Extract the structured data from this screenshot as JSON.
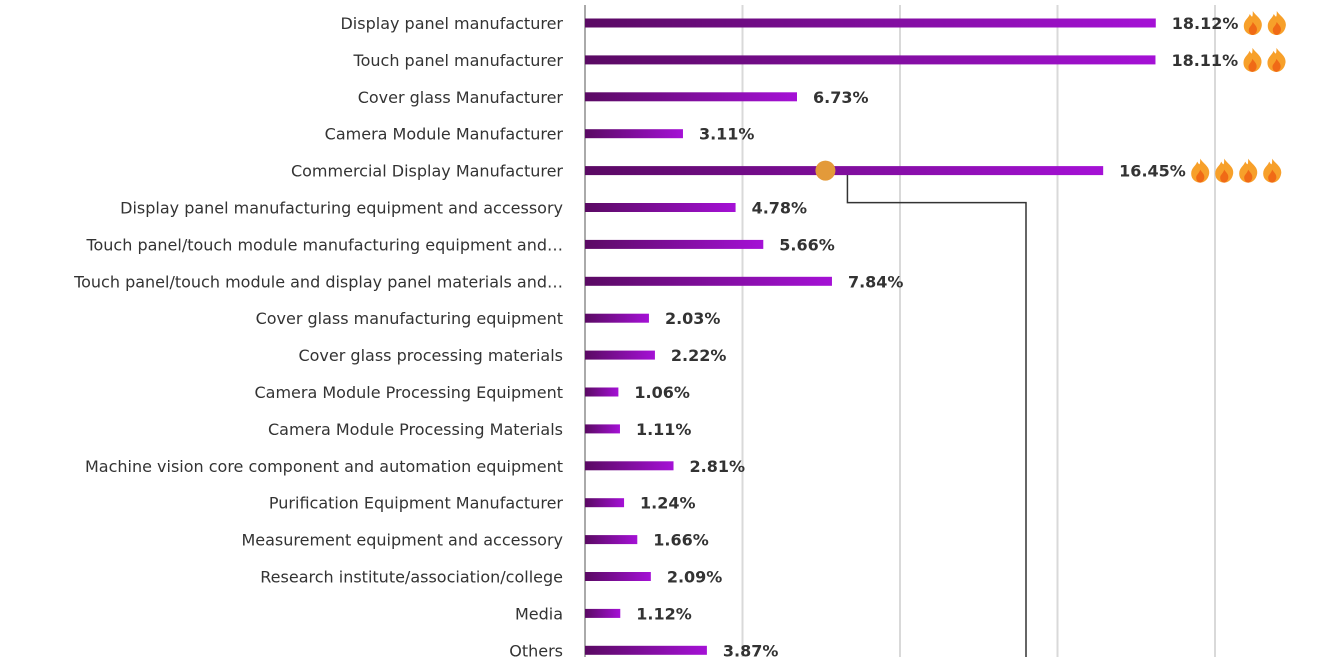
{
  "colors": {
    "bar_start": "#5a0a63",
    "bar_end": "#a511d6",
    "flame_outer": "#f7a02a",
    "flame_inner": "#f06a16",
    "marker": "#e39a3a",
    "connector": "#333333",
    "text": "#333333"
  },
  "chart_data": {
    "type": "bar",
    "orientation": "horizontal",
    "categories": [
      "Display panel manufacturer",
      "Touch panel manufacturer",
      "Cover glass Manufacturer",
      "Camera Module Manufacturer",
      "Commercial Display Manufacturer",
      "Display panel manufacturing equipment and accessory",
      "Touch panel/touch module manufacturing equipment and…",
      "Touch panel/touch module and display panel materials and…",
      "Cover glass manufacturing equipment",
      "Cover glass processing materials",
      "Camera Module Processing Equipment",
      "Camera Module Processing Materials",
      "Machine vision core component and automation equipment",
      "Purification Equipment Manufacturer",
      "Measurement equipment and accessory",
      "Research institute/association/college",
      "Media",
      "Others"
    ],
    "values": [
      18.12,
      18.11,
      6.73,
      3.11,
      16.45,
      4.78,
      5.66,
      7.84,
      2.03,
      2.22,
      1.06,
      1.11,
      2.81,
      1.24,
      1.66,
      2.09,
      1.12,
      3.87
    ],
    "value_labels": [
      "18.12%",
      "18.11%",
      "6.73%",
      "3.11%",
      "16.45%",
      "4.78%",
      "5.66%",
      "7.84%",
      "2.03%",
      "2.22%",
      "1.06%",
      "1.11%",
      "2.81%",
      "1.24%",
      "1.66%",
      "2.09%",
      "1.12%",
      "3.87%"
    ],
    "flame_icons": [
      2,
      2,
      0,
      0,
      0,
      0,
      0,
      0,
      0,
      0,
      0,
      0,
      0,
      0,
      0,
      0,
      0,
      0
    ],
    "flame_icons_extra": [
      0,
      0,
      0,
      0,
      4,
      0,
      0,
      0,
      0,
      0,
      0,
      0,
      0,
      0,
      0,
      0,
      0,
      0
    ],
    "highlight_marker_category_index": 4,
    "xlim": [
      0,
      22
    ],
    "grid": true,
    "legend": "none",
    "title": "",
    "xlabel": "",
    "ylabel": ""
  }
}
